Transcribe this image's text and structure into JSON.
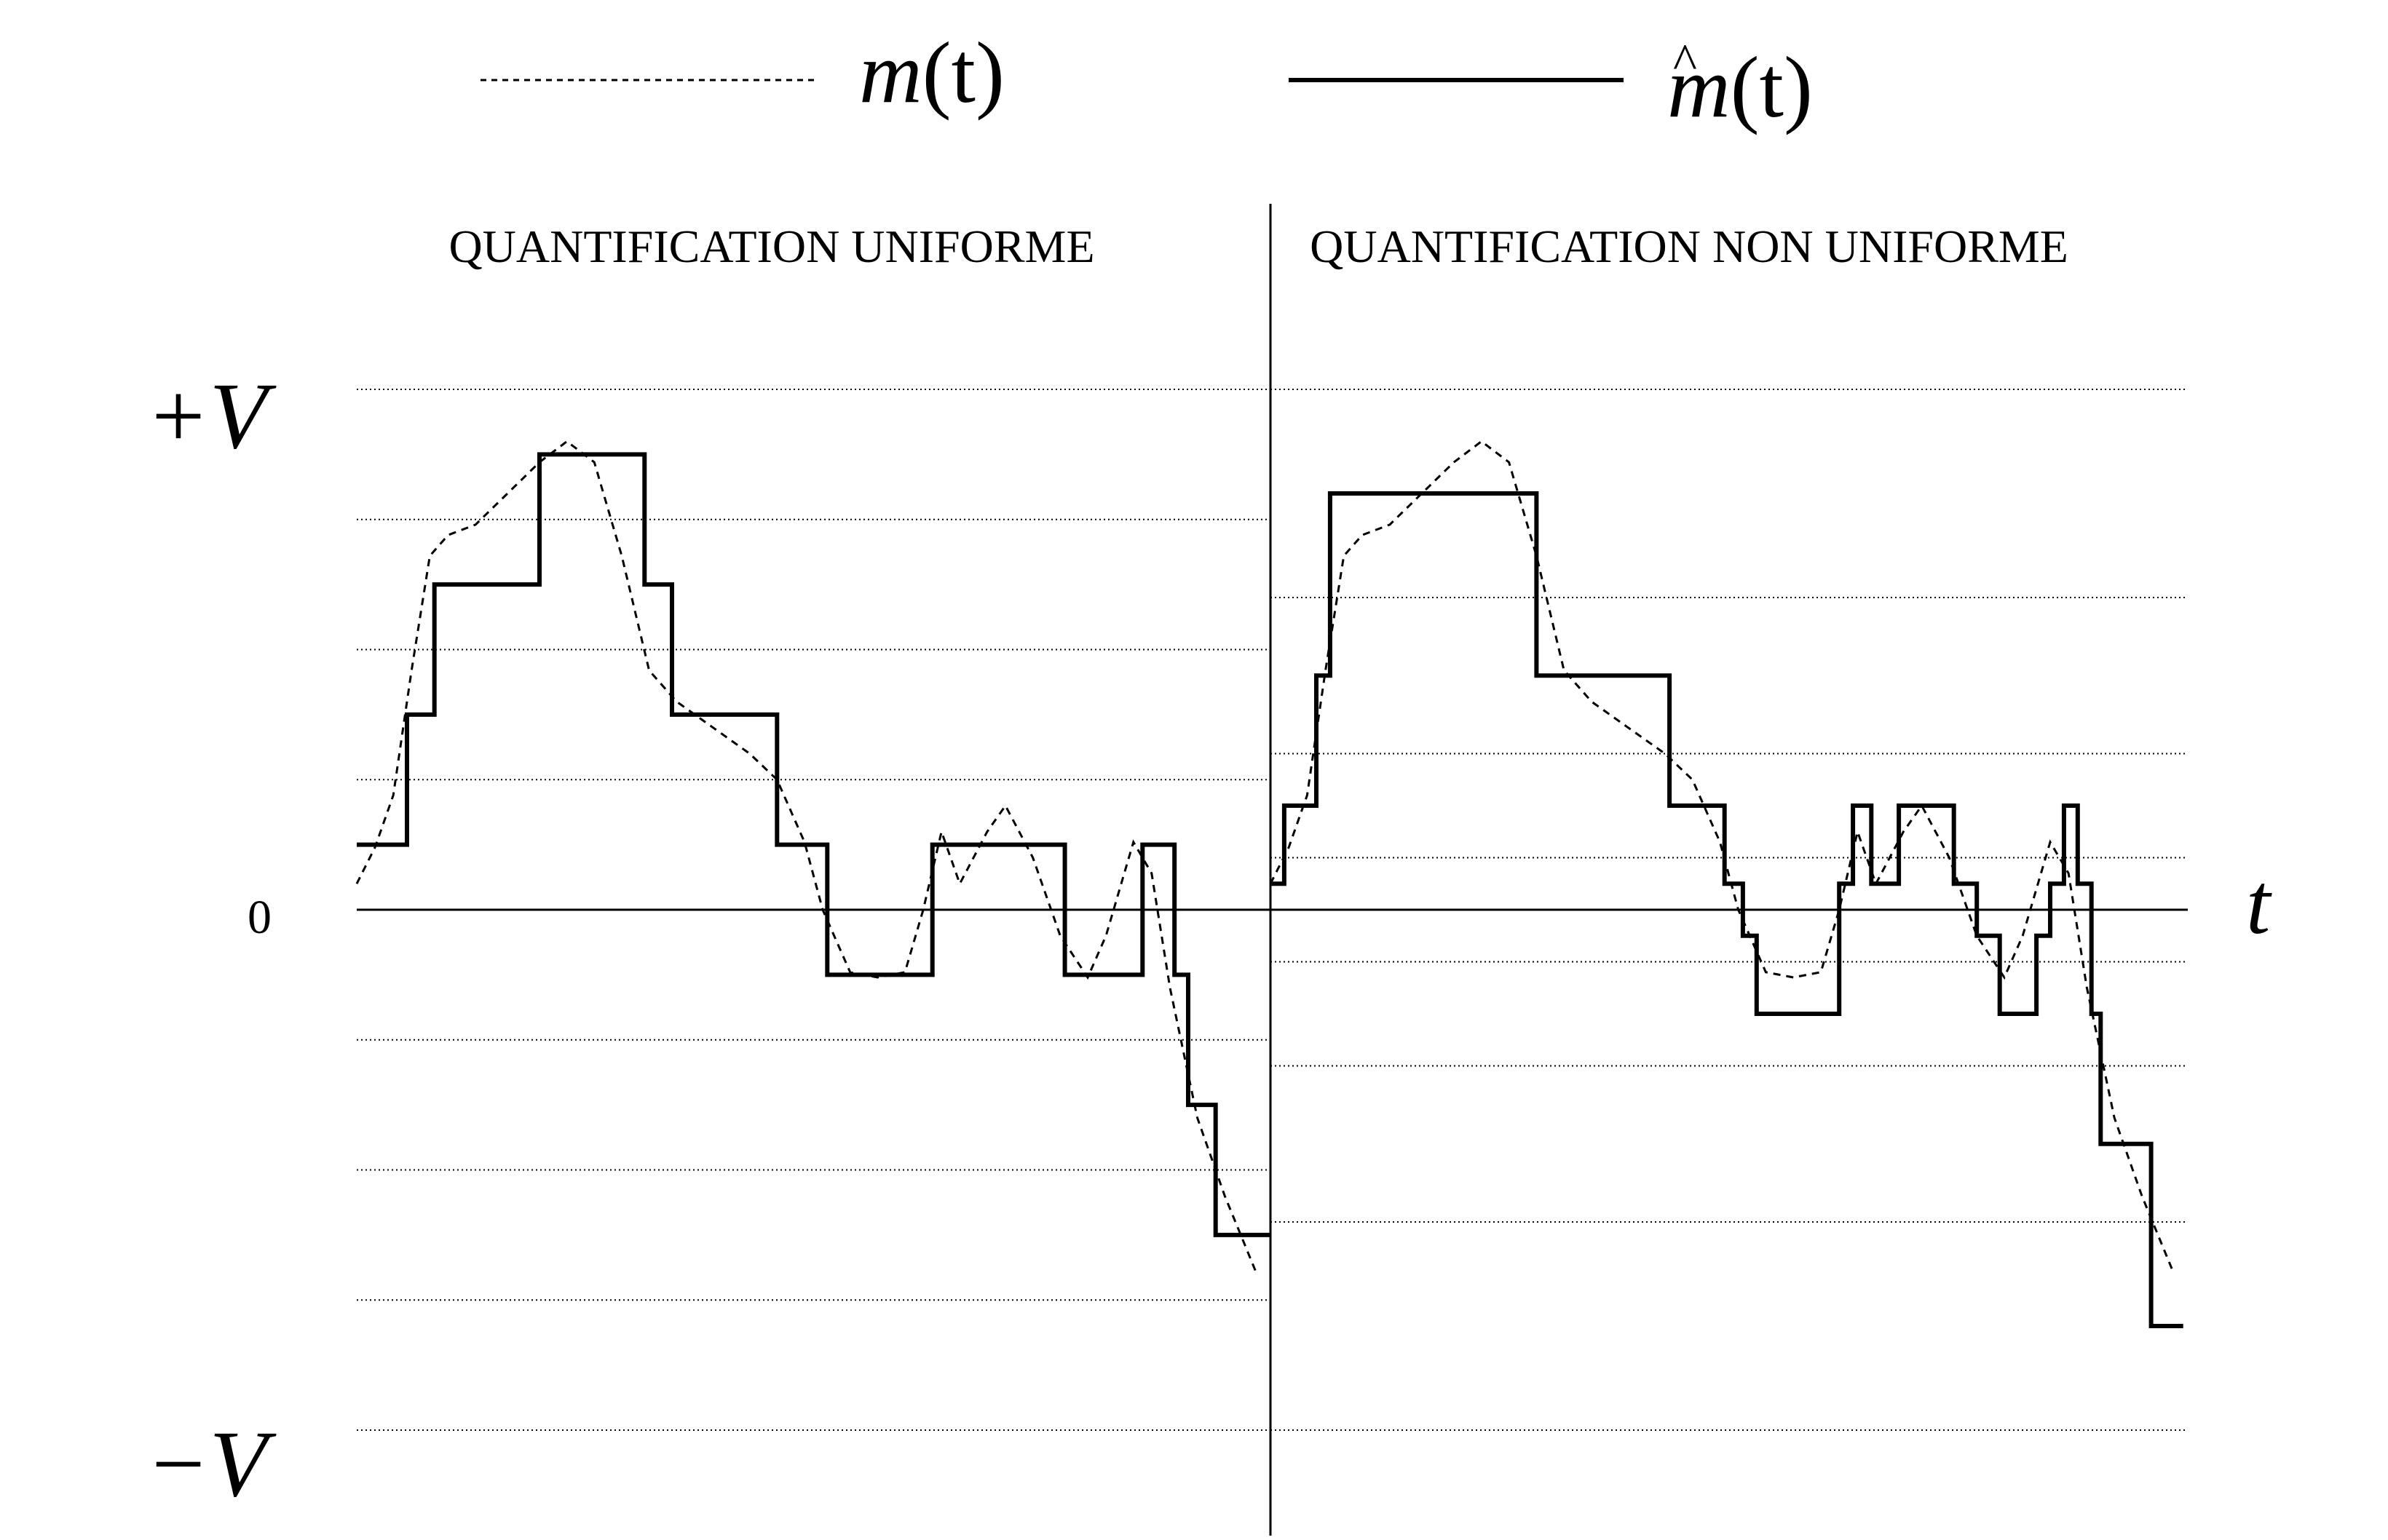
{
  "legend": {
    "dashed_label_base": "m",
    "dashed_label_args": "(t)",
    "solid_label_hat": "^",
    "solid_label_base": "m",
    "solid_label_args": "(t)"
  },
  "panels": {
    "left_title": "QUANTIFICATION  UNIFORME",
    "right_title": "QUANTIFICATION  NON UNIFORME"
  },
  "axis": {
    "top_label": "+V",
    "zero_label": "0",
    "bottom_label": "−V",
    "time_label": "t"
  },
  "colors": {
    "ink": "#000000",
    "background": "#ffffff"
  },
  "chart_data": [
    {
      "type": "line",
      "title": "QUANTIFICATION  UNIFORME",
      "xlim": [
        0,
        1
      ],
      "ylim": [
        -1,
        1
      ],
      "y_axis_labels": [
        "+V",
        "0",
        "−V"
      ],
      "quantization_levels": [
        1,
        0.75,
        0.5,
        0.25,
        0,
        -0.25,
        -0.5,
        -0.75,
        -1
      ],
      "series": [
        {
          "name": "m(t)",
          "style": "dashed",
          "points": [
            [
              0.0,
              0.05
            ],
            [
              0.02,
              0.12
            ],
            [
              0.04,
              0.22
            ],
            [
              0.06,
              0.46
            ],
            [
              0.08,
              0.68
            ],
            [
              0.1,
              0.72
            ],
            [
              0.13,
              0.74
            ],
            [
              0.165,
              0.8
            ],
            [
              0.2,
              0.86
            ],
            [
              0.23,
              0.9
            ],
            [
              0.26,
              0.86
            ],
            [
              0.29,
              0.68
            ],
            [
              0.32,
              0.46
            ],
            [
              0.35,
              0.4
            ],
            [
              0.39,
              0.35
            ],
            [
              0.43,
              0.3
            ],
            [
              0.46,
              0.25
            ],
            [
              0.49,
              0.13
            ],
            [
              0.51,
              0.0
            ],
            [
              0.54,
              -0.12
            ],
            [
              0.57,
              -0.13
            ],
            [
              0.6,
              -0.12
            ],
            [
              0.62,
              0.0
            ],
            [
              0.64,
              0.15
            ],
            [
              0.66,
              0.05
            ],
            [
              0.69,
              0.15
            ],
            [
              0.71,
              0.2
            ],
            [
              0.74,
              0.1
            ],
            [
              0.77,
              -0.05
            ],
            [
              0.8,
              -0.13
            ],
            [
              0.82,
              -0.05
            ],
            [
              0.85,
              0.13
            ],
            [
              0.87,
              0.07
            ],
            [
              0.89,
              -0.15
            ],
            [
              0.92,
              -0.4
            ],
            [
              0.95,
              -0.55
            ],
            [
              0.985,
              -0.7
            ]
          ]
        },
        {
          "name": "m̂(t)",
          "style": "solid",
          "points": [
            [
              0.0,
              0.125
            ],
            [
              0.055,
              0.125
            ],
            [
              0.055,
              0.375
            ],
            [
              0.085,
              0.375
            ],
            [
              0.085,
              0.625
            ],
            [
              0.2,
              0.625
            ],
            [
              0.2,
              0.875
            ],
            [
              0.315,
              0.875
            ],
            [
              0.315,
              0.625
            ],
            [
              0.345,
              0.625
            ],
            [
              0.345,
              0.375
            ],
            [
              0.46,
              0.375
            ],
            [
              0.46,
              0.125
            ],
            [
              0.515,
              0.125
            ],
            [
              0.515,
              -0.125
            ],
            [
              0.63,
              -0.125
            ],
            [
              0.63,
              0.125
            ],
            [
              0.775,
              0.125
            ],
            [
              0.775,
              -0.125
            ],
            [
              0.86,
              -0.125
            ],
            [
              0.86,
              0.125
            ],
            [
              0.895,
              0.125
            ],
            [
              0.895,
              -0.125
            ],
            [
              0.91,
              -0.125
            ],
            [
              0.91,
              -0.375
            ],
            [
              0.94,
              -0.375
            ],
            [
              0.94,
              -0.625
            ],
            [
              1.0,
              -0.625
            ]
          ]
        }
      ]
    },
    {
      "type": "line",
      "title": "QUANTIFICATION  NON UNIFORME",
      "xlim": [
        0,
        1
      ],
      "ylim": [
        -1,
        1
      ],
      "quantization_levels": [
        1,
        0.6,
        0.3,
        0.1,
        0,
        -0.1,
        -0.3,
        -0.6,
        -1
      ],
      "series": [
        {
          "name": "m(t)",
          "style": "dashed",
          "points": [
            [
              0.0,
              0.05
            ],
            [
              0.02,
              0.12
            ],
            [
              0.04,
              0.22
            ],
            [
              0.06,
              0.46
            ],
            [
              0.08,
              0.68
            ],
            [
              0.1,
              0.72
            ],
            [
              0.13,
              0.74
            ],
            [
              0.165,
              0.8
            ],
            [
              0.2,
              0.86
            ],
            [
              0.23,
              0.9
            ],
            [
              0.26,
              0.86
            ],
            [
              0.29,
              0.68
            ],
            [
              0.32,
              0.46
            ],
            [
              0.35,
              0.4
            ],
            [
              0.39,
              0.35
            ],
            [
              0.43,
              0.3
            ],
            [
              0.46,
              0.25
            ],
            [
              0.49,
              0.13
            ],
            [
              0.51,
              0.0
            ],
            [
              0.54,
              -0.12
            ],
            [
              0.57,
              -0.13
            ],
            [
              0.6,
              -0.12
            ],
            [
              0.62,
              0.0
            ],
            [
              0.64,
              0.15
            ],
            [
              0.66,
              0.05
            ],
            [
              0.69,
              0.15
            ],
            [
              0.71,
              0.2
            ],
            [
              0.74,
              0.1
            ],
            [
              0.77,
              -0.05
            ],
            [
              0.8,
              -0.13
            ],
            [
              0.82,
              -0.05
            ],
            [
              0.85,
              0.13
            ],
            [
              0.87,
              0.07
            ],
            [
              0.89,
              -0.15
            ],
            [
              0.92,
              -0.4
            ],
            [
              0.95,
              -0.55
            ],
            [
              0.985,
              -0.7
            ]
          ]
        },
        {
          "name": "m̂(t)",
          "style": "solid",
          "points": [
            [
              0.0,
              0.05
            ],
            [
              0.015,
              0.05
            ],
            [
              0.015,
              0.2
            ],
            [
              0.05,
              0.2
            ],
            [
              0.05,
              0.45
            ],
            [
              0.065,
              0.45
            ],
            [
              0.065,
              0.8
            ],
            [
              0.165,
              0.8
            ],
            [
              0.165,
              0.8
            ],
            [
              0.29,
              0.8
            ],
            [
              0.29,
              0.45
            ],
            [
              0.435,
              0.45
            ],
            [
              0.435,
              0.2
            ],
            [
              0.495,
              0.2
            ],
            [
              0.495,
              0.05
            ],
            [
              0.515,
              0.05
            ],
            [
              0.515,
              -0.05
            ],
            [
              0.53,
              -0.05
            ],
            [
              0.53,
              -0.2
            ],
            [
              0.62,
              -0.2
            ],
            [
              0.62,
              0.05
            ],
            [
              0.635,
              0.05
            ],
            [
              0.635,
              0.2
            ],
            [
              0.655,
              0.2
            ],
            [
              0.655,
              0.05
            ],
            [
              0.685,
              0.05
            ],
            [
              0.685,
              0.2
            ],
            [
              0.745,
              0.2
            ],
            [
              0.745,
              0.05
            ],
            [
              0.77,
              0.05
            ],
            [
              0.77,
              -0.05
            ],
            [
              0.795,
              -0.05
            ],
            [
              0.795,
              -0.2
            ],
            [
              0.835,
              -0.2
            ],
            [
              0.835,
              -0.05
            ],
            [
              0.85,
              -0.05
            ],
            [
              0.85,
              0.05
            ],
            [
              0.865,
              0.05
            ],
            [
              0.865,
              0.2
            ],
            [
              0.88,
              0.2
            ],
            [
              0.88,
              0.05
            ],
            [
              0.895,
              0.05
            ],
            [
              0.895,
              -0.2
            ],
            [
              0.905,
              -0.2
            ],
            [
              0.905,
              -0.45
            ],
            [
              0.96,
              -0.45
            ],
            [
              0.96,
              -0.8
            ],
            [
              0.995,
              -0.8
            ]
          ]
        }
      ]
    }
  ]
}
